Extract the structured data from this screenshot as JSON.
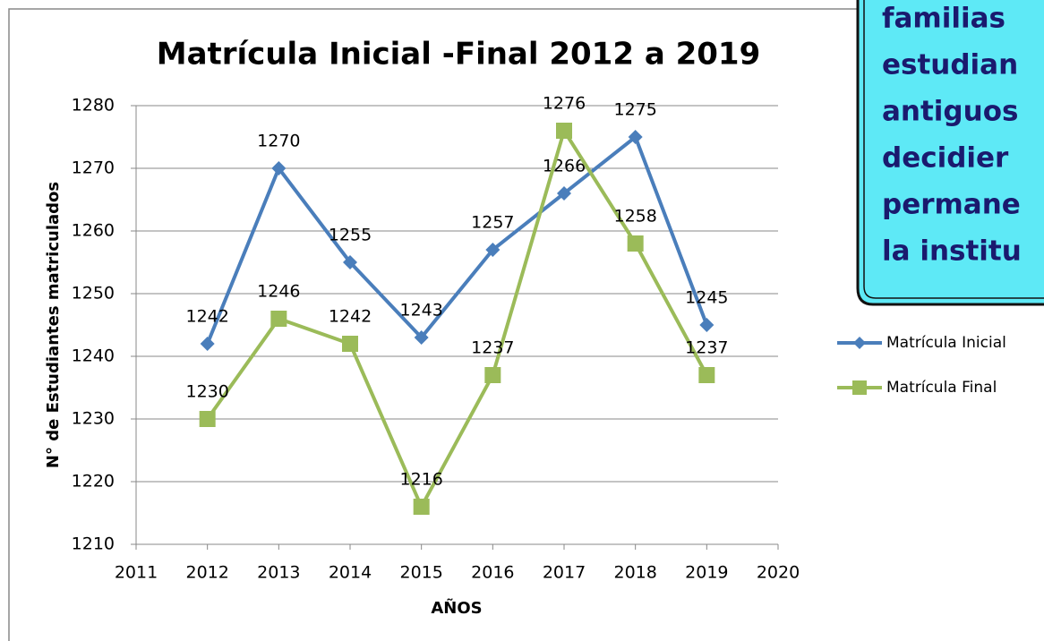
{
  "chart_data": {
    "type": "line",
    "title": "Matrícula Inicial -Final 2012 a 2019",
    "x_label": "AÑOS",
    "y_label": "N° de Estudiantes matriculados",
    "x": [
      2012,
      2013,
      2014,
      2015,
      2016,
      2017,
      2018,
      2019
    ],
    "series": [
      {
        "name": "Matrícula Inicial",
        "color": "#4a7ebb",
        "marker": "diamond",
        "values": [
          1242,
          1270,
          1255,
          1243,
          1257,
          1266,
          1275,
          1245
        ]
      },
      {
        "name": "Matrícula Final",
        "color": "#9bbb59",
        "marker": "square",
        "values": [
          1230,
          1246,
          1242,
          1216,
          1237,
          1276,
          1258,
          1237
        ]
      }
    ],
    "xlim": [
      2011,
      2020
    ],
    "xticks": [
      2011,
      2012,
      2013,
      2014,
      2015,
      2016,
      2017,
      2018,
      2019,
      2020
    ],
    "ylim": [
      1210,
      1280
    ],
    "yticks": [
      1210,
      1220,
      1230,
      1240,
      1250,
      1260,
      1270,
      1280
    ],
    "grid": true,
    "legend": "right",
    "annotation_lines": [
      "familias",
      "estudian",
      "antiguos",
      "decidier",
      "permane",
      "la institu"
    ]
  }
}
